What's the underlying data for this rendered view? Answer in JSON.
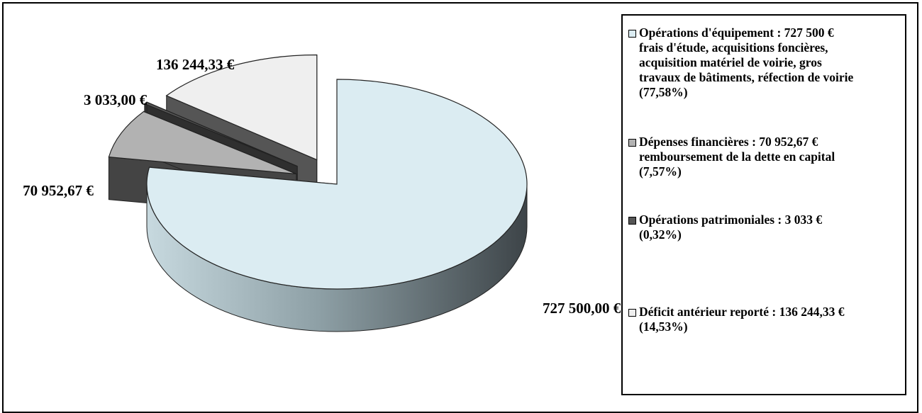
{
  "chart_data": {
    "type": "pie",
    "title": "",
    "slices": [
      {
        "name": "Opérations d'équipement",
        "value": 727500.0,
        "value_label": "727 500,00 €",
        "color": "#dbecf2"
      },
      {
        "name": "Dépenses financières",
        "value": 70952.67,
        "value_label": "70 952,67 €",
        "color": "#b2b2b2"
      },
      {
        "name": "Opérations patrimoniales",
        "value": 3033.0,
        "value_label": "3 033,00 €",
        "color": "#555555"
      },
      {
        "name": "Déficit antérieur reporté",
        "value": 136244.33,
        "value_label": "136 244,33 €",
        "color": "#efefef"
      }
    ],
    "legend": {
      "placement": "right",
      "items": [
        {
          "lines": [
            "Opérations d'équipement : 727 500 €",
            "frais d'étude, acquisitions foncières,",
            "acquisition matériel de voirie, gros",
            "travaux de bâtiments, réfection de voirie",
            "(77,58%)"
          ],
          "color": "#dbecf2"
        },
        {
          "lines": [
            "Dépenses financières : 70 952,67 €",
            "remboursement de la dette en capital",
            "(7,57%)"
          ],
          "color": "#b2b2b2"
        },
        {
          "lines": [
            "Opérations patrimoniales : 3 033 €",
            "(0,32%)"
          ],
          "color": "#555555"
        },
        {
          "lines": [
            "Déficit antérieur reporté : 136 244,33 €",
            "(14,53%)"
          ],
          "color": "#efefef"
        }
      ]
    },
    "style": "3d-exploded"
  }
}
